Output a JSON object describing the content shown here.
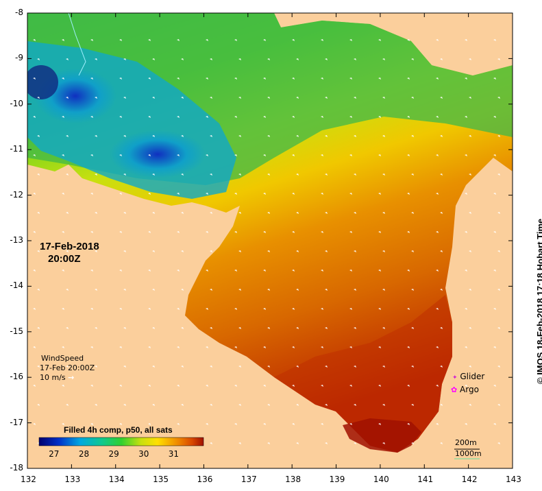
{
  "map": {
    "date_line1": "17-Feb-2018",
    "date_line2": "20:00Z",
    "x_ticks": [
      "132",
      "133",
      "134",
      "135",
      "136",
      "137",
      "138",
      "139",
      "140",
      "141",
      "142",
      "143"
    ],
    "y_ticks": [
      "-8",
      "-9",
      "-10",
      "-11",
      "-12",
      "-13",
      "-14",
      "-15",
      "-16",
      "-17",
      "-18"
    ],
    "land_color": "#fbcf9c"
  },
  "wind": {
    "title": "WindSpeed",
    "time": "17-Feb 20:00Z",
    "scale_label": "10 m/s",
    "arrow": "→"
  },
  "colorbar": {
    "title": "Filled 4h comp, p50, all sats",
    "ticks": [
      "27",
      "28",
      "29",
      "30",
      "31"
    ],
    "range": [
      26.5,
      32.0
    ]
  },
  "legend": {
    "glider": "Glider",
    "argo": "Argo",
    "glider_symbol": "✦",
    "argo_symbol": "✿",
    "glider_color": "#d020d0",
    "argo_color": "#ff00ff"
  },
  "contours": {
    "c200": "200m",
    "c1000": "1000m"
  },
  "credit": "© IMOS 18-Feb-2018 17:18 Hobart Time"
}
